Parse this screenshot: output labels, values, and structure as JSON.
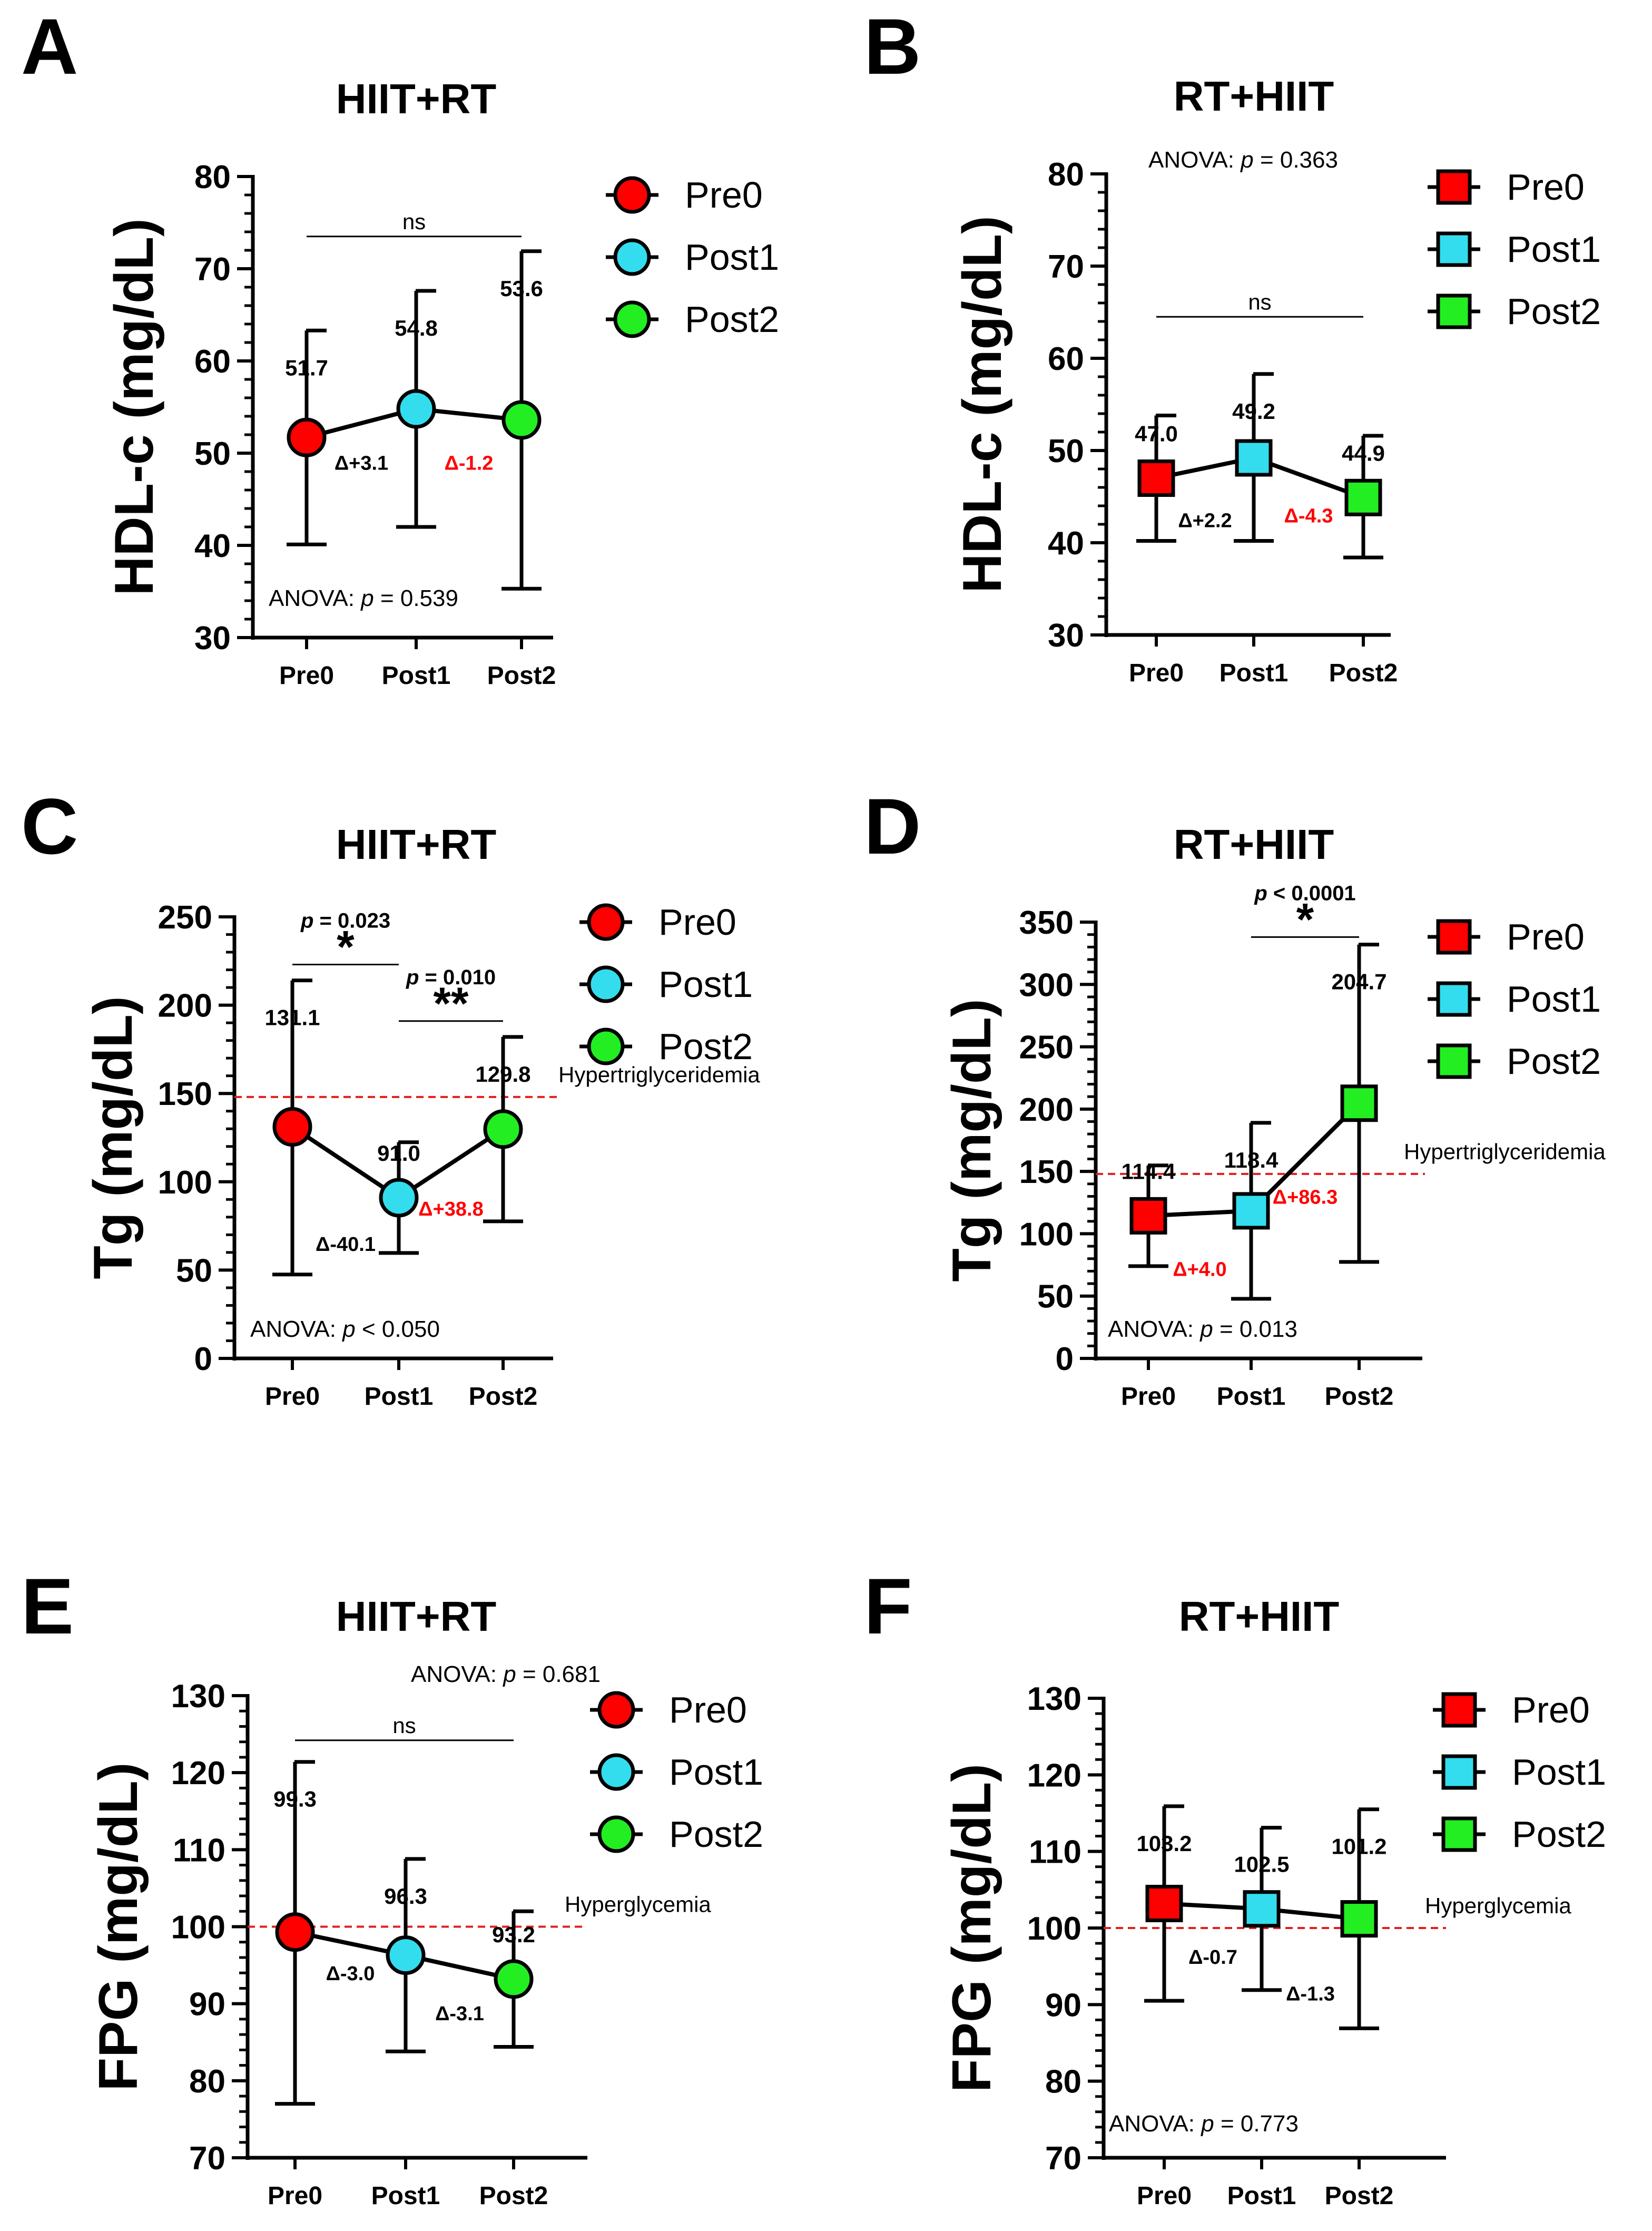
{
  "chart_data": [
    {
      "panel": "A",
      "type": "line",
      "title": "HIIT+RT",
      "ylabel": "HDL-c (mg/dL)",
      "xlabel": "",
      "categories": [
        "Pre0",
        "Post1",
        "Post2"
      ],
      "ylim": [
        30,
        80
      ],
      "yticks": [
        "30",
        "40",
        "50",
        "60",
        "70",
        "80"
      ],
      "marker": "circle",
      "points": [
        {
          "x": "Pre0",
          "mean": 51.7,
          "label": "51.7",
          "upper": 63.3,
          "lower": 40.1,
          "color": "#ff0000"
        },
        {
          "x": "Post1",
          "mean": 54.8,
          "label": "54.8",
          "upper": 67.6,
          "lower": 42.0,
          "color": "#33ddee"
        },
        {
          "x": "Post2",
          "mean": 53.6,
          "label": "53.6",
          "upper": 71.9,
          "lower": 35.3,
          "color": "#22ee22"
        }
      ],
      "deltas": [
        {
          "text": "Δ+3.1",
          "color": "#000000",
          "y": 49.0,
          "seg": 0
        },
        {
          "text": "Δ-1.2",
          "color": "#ff0000",
          "y": 49.0,
          "seg": 1
        }
      ],
      "anova": {
        "prefix": "ANOVA: ",
        "p": "p",
        "suffix": " = 0.539",
        "pos": "bottom"
      },
      "brackets": [
        {
          "from": 0,
          "to": 2,
          "level": 73.5,
          "mark": "ns"
        }
      ],
      "legend": [
        "Pre0",
        "Post1",
        "Post2"
      ]
    },
    {
      "panel": "B",
      "type": "line",
      "title": "RT+HIIT",
      "ylabel": "HDL-c (mg/dL)",
      "xlabel": "",
      "categories": [
        "Pre0",
        "Post1",
        "Post2"
      ],
      "ylim": [
        30,
        80
      ],
      "yticks": [
        "30",
        "40",
        "50",
        "60",
        "70",
        "80"
      ],
      "marker": "square",
      "points": [
        {
          "x": "Pre0",
          "mean": 47.0,
          "label": "47.0",
          "upper": 53.8,
          "lower": 40.2,
          "color": "#ff0000"
        },
        {
          "x": "Post1",
          "mean": 49.2,
          "label": "49.2",
          "upper": 58.3,
          "lower": 40.2,
          "color": "#33ddee"
        },
        {
          "x": "Post2",
          "mean": 44.9,
          "label": "44.9",
          "upper": 51.6,
          "lower": 38.4,
          "color": "#22ee22"
        }
      ],
      "deltas": [
        {
          "text": "Δ+2.2",
          "color": "#000000",
          "y": 42.5,
          "seg": 0
        },
        {
          "text": "Δ-4.3",
          "color": "#ff0000",
          "y": 43.0,
          "seg": 1
        }
      ],
      "anova": {
        "prefix": "ANOVA: ",
        "p": "p",
        "suffix": " = 0.363",
        "pos": "top"
      },
      "brackets": [
        {
          "from": 0,
          "to": 2,
          "level": 64.5,
          "mark": "ns"
        }
      ],
      "legend": [
        "Pre0",
        "Post1",
        "Post2"
      ]
    },
    {
      "panel": "C",
      "type": "line",
      "title": "HIIT+RT",
      "ylabel": "Tg (mg/dL)",
      "xlabel": "",
      "categories": [
        "Pre0",
        "Post1",
        "Post2"
      ],
      "ylim": [
        0,
        250
      ],
      "yticks": [
        "0",
        "50",
        "100",
        "150",
        "200",
        "250"
      ],
      "marker": "circle",
      "points": [
        {
          "x": "Pre0",
          "mean": 131.1,
          "label": "131.1",
          "upper": 214.0,
          "lower": 47.5,
          "color": "#ff0000"
        },
        {
          "x": "Post1",
          "mean": 91.0,
          "label": "91.0",
          "upper": 122.4,
          "lower": 59.7,
          "color": "#33ddee"
        },
        {
          "x": "Post2",
          "mean": 129.8,
          "label": "129.8",
          "upper": 182.0,
          "lower": 77.6,
          "color": "#22ee22"
        }
      ],
      "deltas": [
        {
          "text": "Δ-40.1",
          "color": "#000000",
          "y": 65.0,
          "seg": 0
        },
        {
          "text": "Δ+38.8",
          "color": "#ff0000",
          "y": 85.0,
          "seg": 1
        }
      ],
      "anova": {
        "prefix": "ANOVA: ",
        "p": "p",
        "suffix": " < 0.050",
        "pos": "bottom"
      },
      "brackets": [
        {
          "from": 0,
          "to": 1,
          "level": 223.0,
          "mark": "*",
          "ptext": "p",
          "pval": " = 0.023"
        },
        {
          "from": 1,
          "to": 2,
          "level": 191.0,
          "mark": "**",
          "ptext": "p",
          "pval": " = 0.010"
        }
      ],
      "threshold": {
        "value": 148,
        "label": "Hypertriglyceridemia"
      },
      "legend": [
        "Pre0",
        "Post1",
        "Post2"
      ]
    },
    {
      "panel": "D",
      "type": "line",
      "title": "RT+HIIT",
      "ylabel": "Tg (mg/dL)",
      "xlabel": "",
      "categories": [
        "Pre0",
        "Post1",
        "Post2"
      ],
      "ylim": [
        0,
        350
      ],
      "yticks": [
        "0",
        "50",
        "100",
        "150",
        "200",
        "250",
        "300",
        "350"
      ],
      "marker": "square",
      "points": [
        {
          "x": "Pre0",
          "mean": 114.4,
          "label": "114.4",
          "upper": 154.8,
          "lower": 74.0,
          "color": "#ff0000"
        },
        {
          "x": "Post1",
          "mean": 118.4,
          "label": "118.4",
          "upper": 189.0,
          "lower": 47.8,
          "color": "#33ddee"
        },
        {
          "x": "Post2",
          "mean": 204.7,
          "label": "204.7",
          "upper": 332.0,
          "lower": 77.4,
          "color": "#22ee22"
        }
      ],
      "deltas": [
        {
          "text": "Δ+4.0",
          "color": "#ff0000",
          "y": 72.0,
          "seg": 0
        },
        {
          "text": "Δ+86.3",
          "color": "#ff0000",
          "y": 130.0,
          "seg": 1
        }
      ],
      "anova": {
        "prefix": "ANOVA: ",
        "p": "p",
        "suffix": " = 0.013",
        "pos": "bottom"
      },
      "brackets": [
        {
          "from": 1,
          "to": 2,
          "level": 338.0,
          "mark": "*",
          "ptext": "p",
          "pval": " < 0.0001"
        }
      ],
      "threshold": {
        "value": 148,
        "label": "Hypertriglyceridemia"
      },
      "legend": [
        "Pre0",
        "Post1",
        "Post2"
      ]
    },
    {
      "panel": "E",
      "type": "line",
      "title": "HIIT+RT",
      "ylabel": "FPG (mg/dL)",
      "xlabel": "",
      "categories": [
        "Pre0",
        "Post1",
        "Post2"
      ],
      "ylim": [
        70,
        130
      ],
      "yticks": [
        "70",
        "80",
        "90",
        "100",
        "110",
        "120",
        "130"
      ],
      "marker": "circle",
      "points": [
        {
          "x": "Pre0",
          "mean": 99.3,
          "label": "99.3",
          "upper": 121.4,
          "lower": 77.0,
          "color": "#ff0000"
        },
        {
          "x": "Post1",
          "mean": 96.3,
          "label": "96.3",
          "upper": 108.8,
          "lower": 83.8,
          "color": "#33ddee"
        },
        {
          "x": "Post2",
          "mean": 93.2,
          "label": "93.2",
          "upper": 102.0,
          "lower": 84.4,
          "color": "#22ee22"
        }
      ],
      "deltas": [
        {
          "text": "Δ-3.0",
          "color": "#000000",
          "y": 94.0,
          "seg": 0
        },
        {
          "text": "Δ-3.1",
          "color": "#000000",
          "y": 88.8,
          "seg": 1
        }
      ],
      "anova": {
        "prefix": "ANOVA: ",
        "p": "p",
        "suffix": " = 0.681",
        "pos": "top"
      },
      "brackets": [
        {
          "from": 0,
          "to": 2,
          "level": 124.2,
          "mark": "ns"
        }
      ],
      "threshold": {
        "value": 100,
        "label": "Hyperglycemia"
      },
      "legend": [
        "Pre0",
        "Post1",
        "Post2"
      ]
    },
    {
      "panel": "F",
      "type": "line",
      "title": "RT+HIIT",
      "ylabel": "FPG (mg/dL)",
      "xlabel": "",
      "categories": [
        "Pre0",
        "Post1",
        "Post2"
      ],
      "ylim": [
        70,
        130
      ],
      "yticks": [
        "70",
        "80",
        "90",
        "100",
        "110",
        "120",
        "130"
      ],
      "marker": "square",
      "points": [
        {
          "x": "Pre0",
          "mean": 103.2,
          "label": "103.2",
          "upper": 115.9,
          "lower": 90.5,
          "color": "#ff0000"
        },
        {
          "x": "Post1",
          "mean": 102.5,
          "label": "102.5",
          "upper": 113.1,
          "lower": 91.9,
          "color": "#33ddee"
        },
        {
          "x": "Post2",
          "mean": 101.2,
          "label": "101.2",
          "upper": 115.5,
          "lower": 86.9,
          "color": "#22ee22"
        }
      ],
      "deltas": [
        {
          "text": "Δ-0.7",
          "color": "#000000",
          "y": 96.3,
          "seg": 0
        },
        {
          "text": "Δ-1.3",
          "color": "#000000",
          "y": 91.5,
          "seg": 1
        }
      ],
      "anova": {
        "prefix": "ANOVA: ",
        "p": "p",
        "suffix": " = 0.773",
        "pos": "bottom"
      },
      "brackets": [],
      "threshold": {
        "value": 100,
        "label": "Hyperglycemia"
      },
      "legend": [
        "Pre0",
        "Post1",
        "Post2"
      ]
    }
  ]
}
